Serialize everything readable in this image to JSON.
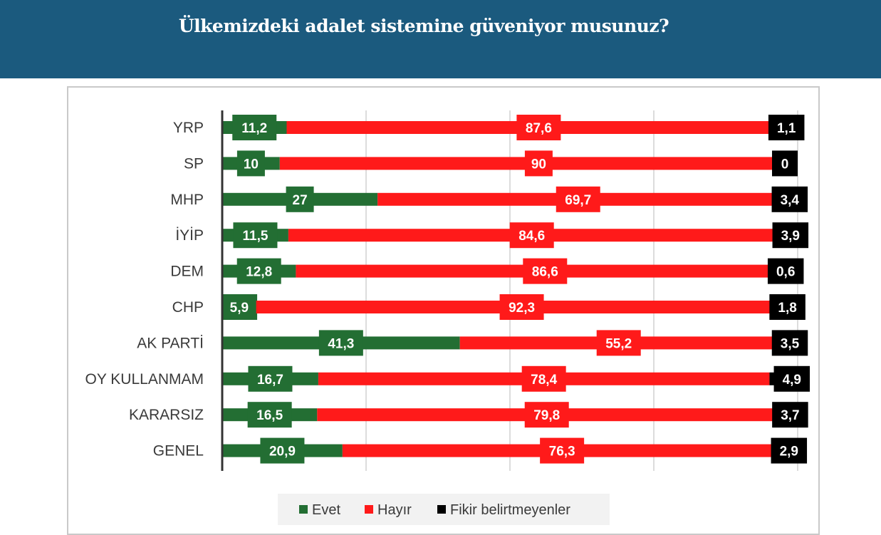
{
  "header": {
    "title": "Ülkemizdeki adalet sistemine güveniyor musunuz?"
  },
  "chart_data": {
    "type": "bar",
    "orientation": "horizontal",
    "stacked": true,
    "title": "Ülkemizdeki adalet sistemine güveniyor musunuz?",
    "categories": [
      "YRP",
      "SP",
      "MHP",
      "İYİP",
      "DEM",
      "CHP",
      "AK PARTİ",
      "OY KULLANMAM",
      "KARARSIZ",
      "GENEL"
    ],
    "series": [
      {
        "name": "Evet",
        "color": "#236e33",
        "values": [
          11.2,
          10,
          27,
          11.5,
          12.8,
          5.9,
          41.3,
          16.7,
          16.5,
          20.9
        ]
      },
      {
        "name": "Hayır",
        "color": "#ff1a1a",
        "values": [
          87.6,
          90,
          69.7,
          84.6,
          86.6,
          92.3,
          55.2,
          78.4,
          79.8,
          76.3
        ]
      },
      {
        "name": "Fikir belirtmeyenler",
        "color": "#000000",
        "values": [
          1.1,
          0,
          3.4,
          3.9,
          0.6,
          1.8,
          3.5,
          4.9,
          3.7,
          2.9
        ]
      }
    ],
    "value_labels": [
      [
        "11,2",
        "87,6",
        "1,1"
      ],
      [
        "10",
        "90",
        "0"
      ],
      [
        "27",
        "69,7",
        "3,4"
      ],
      [
        "11,5",
        "84,6",
        "3,9"
      ],
      [
        "12,8",
        "86,6",
        "0,6"
      ],
      [
        "5,9",
        "92,3",
        "1,8"
      ],
      [
        "41,3",
        "55,2",
        "3,5"
      ],
      [
        "16,7",
        "78,4",
        "4,9"
      ],
      [
        "16,5",
        "79,8",
        "3,7"
      ],
      [
        "20,9",
        "76,3",
        "2,9"
      ]
    ],
    "xlim": [
      0,
      100
    ],
    "grid": true,
    "legend_position": "bottom",
    "legend": [
      "Evet",
      "Hayır",
      "Fikir belirtmeyenler"
    ]
  }
}
